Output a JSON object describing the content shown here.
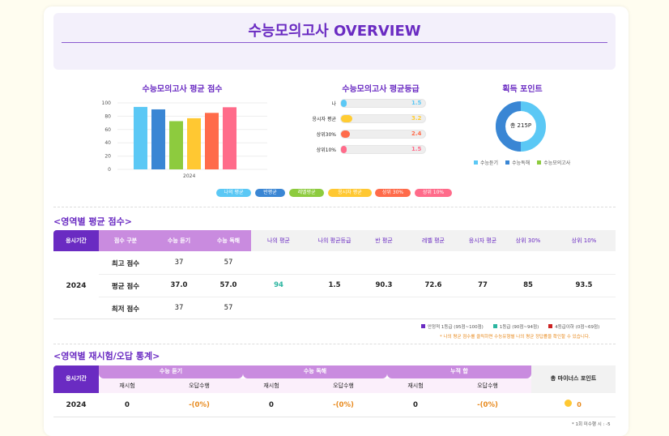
{
  "hero": {
    "title": "수능모의고사 OVERVIEW"
  },
  "avg_score": {
    "title": "수능모의고사 평균 점수",
    "yticks": [
      "100",
      "80",
      "60",
      "40",
      "20",
      "0"
    ],
    "xlabel": "2024"
  },
  "avg_grade": {
    "title": "수능모의고사 평균등급",
    "rows": [
      {
        "label": "나",
        "value": "1.5",
        "color": "#5bc8f5"
      },
      {
        "label": "응시자 평균",
        "value": "3.2",
        "color": "#ffcc33"
      },
      {
        "label": "상위30%",
        "value": "2.4",
        "color": "#ff6b4a"
      },
      {
        "label": "상위10%",
        "value": "1.5",
        "color": "#ff6b8a"
      }
    ]
  },
  "points": {
    "title": "획득 포인트",
    "center": "총 215P",
    "legend": [
      "수능듣기",
      "수능독해",
      "수능모의고사"
    ]
  },
  "legend": [
    "나의 평균",
    "반평균",
    "레벨평균",
    "응시자 평균",
    "상위 30%",
    "상위 10%"
  ],
  "chart_data": {
    "type": "bar",
    "categories": [
      "나의 평균",
      "반평균",
      "레벨평균",
      "응시자 평균",
      "상위 30%",
      "상위 10%"
    ],
    "values": [
      94,
      90.3,
      72.6,
      77,
      85,
      93.5
    ],
    "colors": [
      "#5bc8f5",
      "#3a86d4",
      "#8dcb3e",
      "#ffc832",
      "#ff6b4a",
      "#ff6b8a"
    ],
    "ylim": [
      0,
      100
    ],
    "xlabel": "2024"
  },
  "section1": {
    "title": "<영역별 평균 점수>",
    "headers": [
      "응시기간",
      "점수 구분",
      "수능 듣기",
      "수능 독해",
      "나의 평균",
      "나의 평균등급",
      "반 평균",
      "레벨 평균",
      "응시자 평균",
      "상위 30%",
      "상위 10%"
    ],
    "year": "2024",
    "rows": [
      {
        "label": "최고 점수",
        "listening": "37",
        "reading": "57"
      },
      {
        "label": "평균 점수",
        "listening": "37.0",
        "reading": "57.0",
        "my_avg": "94",
        "my_grade": "1.5",
        "class_avg": "90.3",
        "level_avg": "72.6",
        "taker_avg": "77",
        "top30": "85",
        "top10": "93.5"
      },
      {
        "label": "최저 점수",
        "listening": "37",
        "reading": "57"
      }
    ],
    "legend": [
      "안정적 1등급 (95점~100점)",
      "1등급 (90점~94점)",
      "4등급이하 (0점~69점)"
    ],
    "note": "* 나의 평균 점수를 클릭하면 수능유형별 나의 평균 정답률을 확인할 수 있습니다."
  },
  "section2": {
    "title": "<영역별 재시험/오답 통계>",
    "groups": [
      "수능 듣기",
      "수능 독해",
      "누적 합"
    ],
    "sub": [
      "재시험",
      "오답수행"
    ],
    "period": "응시기간",
    "minus": "총 마이너스 포인트",
    "year": "2024",
    "values": [
      "0",
      "-(0%)",
      "0",
      "-(0%)",
      "0",
      "-(0%)"
    ],
    "minus_value": "0",
    "note": "* 1회 미수행 시 : -5"
  }
}
